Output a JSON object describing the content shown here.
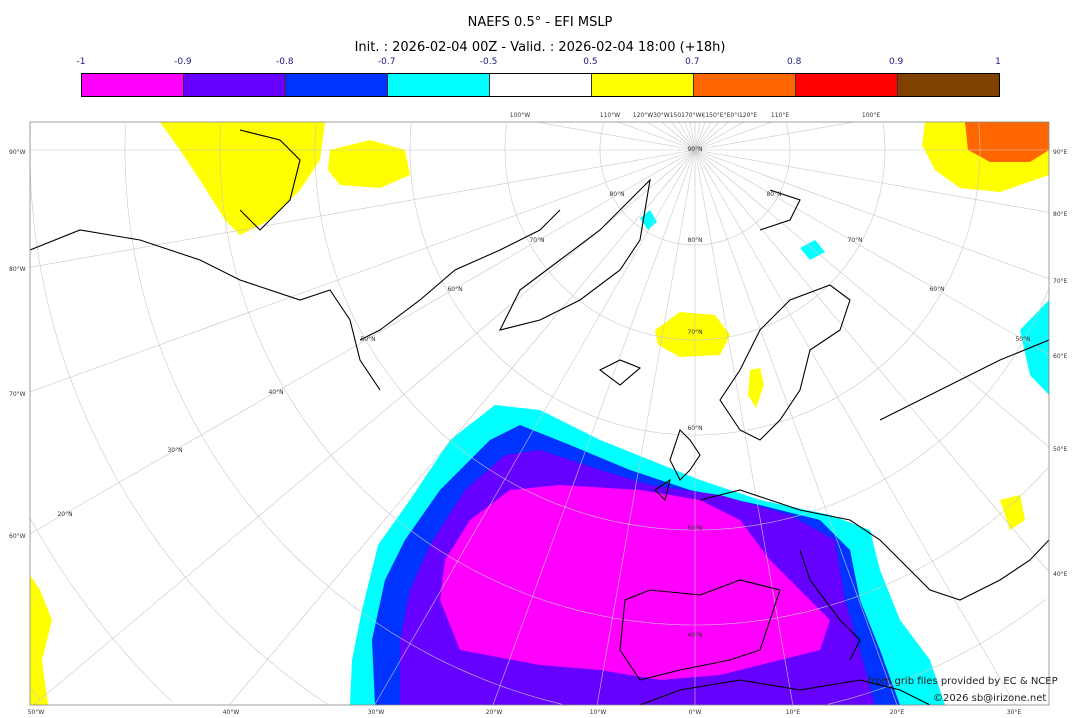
{
  "title": "NAEFS 0.5° - EFI MSLP",
  "subtitle": "Init. : 2026-02-04 00Z - Valid. : 2026-02-04 18:00 (+18h)",
  "colorbar": {
    "ticks": [
      "-1",
      "-0.9",
      "-0.8",
      "-0.7",
      "-0.5",
      "0.5",
      "0.7",
      "0.8",
      "0.9",
      "1"
    ],
    "colors": [
      "#ff00ff",
      "#6600ff",
      "#0033ff",
      "#00ffff",
      "#ffffff",
      "#ffff00",
      "#ff6600",
      "#ff0000",
      "#804000"
    ]
  },
  "map": {
    "left_labels": [
      "90°W",
      "80°W",
      "70°W",
      "60°W"
    ],
    "right_labels": [
      "90°E",
      "80°E",
      "70°E",
      "60°E",
      "50°E",
      "40°E"
    ],
    "bottom_labels": [
      "50°W",
      "40°W",
      "30°W",
      "20°W",
      "10°W",
      "0°W",
      "10°E",
      "20°E",
      "30°E"
    ],
    "top_labels": [
      "100°W",
      "110°W",
      "120°W30°W150170°W€150°E°E0°I120°E",
      "110°E",
      "100°E"
    ],
    "lat_labels": [
      "90°N",
      "80°N",
      "70°N",
      "60°N",
      "50°N",
      "40°N",
      "80°N",
      "70°N",
      "60°N",
      "50°N",
      "40°N",
      "30°N",
      "20°N",
      "80°N",
      "70°N",
      "60°N",
      "50°N"
    ]
  },
  "credits": {
    "source": "from grib files provided by EC & NCEP",
    "copyright": "©2026 sb@irizone.net"
  }
}
